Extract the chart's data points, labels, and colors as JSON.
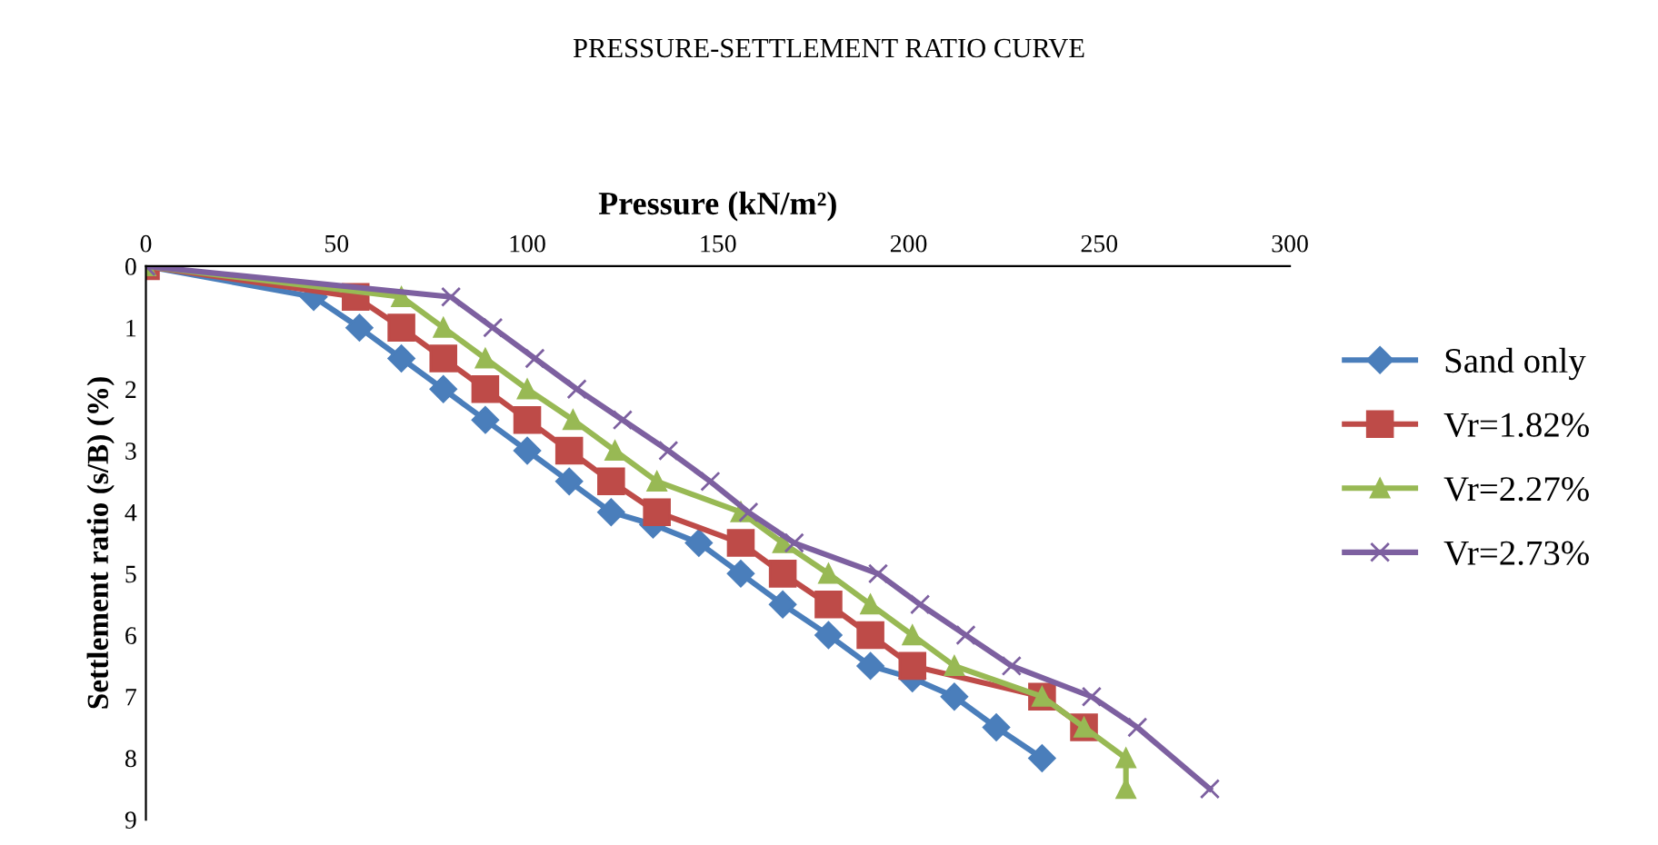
{
  "chart_data": {
    "type": "line",
    "title": "PRESSURE-SETTLEMENT RATIO CURVE",
    "xlabel": "Pressure (kN/m²)",
    "ylabel": "Settlement ratio (s/B) (%)",
    "xlim": [
      0,
      300
    ],
    "xticks": [
      0,
      50,
      100,
      150,
      200,
      250,
      300
    ],
    "ylim": [
      9,
      0
    ],
    "yticks": [
      0,
      1,
      2,
      3,
      4,
      5,
      6,
      7,
      8,
      9
    ],
    "grid": false,
    "legend": "right",
    "series": [
      {
        "name": "Sand only",
        "color": "#4a7ebb",
        "marker": "diamond",
        "x": [
          0,
          44,
          56,
          67,
          78,
          89,
          100,
          111,
          122,
          133,
          145,
          156,
          167,
          179,
          190,
          201,
          212,
          223,
          235
        ],
        "values": [
          0,
          0.5,
          1,
          1.5,
          2,
          2.5,
          3,
          3.5,
          4,
          4.2,
          4.5,
          5,
          5.5,
          6,
          6.5,
          6.7,
          7,
          7.5,
          8
        ]
      },
      {
        "name": "Vr=1.82%",
        "color": "#be4b48",
        "marker": "square",
        "x": [
          0,
          55,
          67,
          78,
          89,
          100,
          111,
          122,
          134,
          156,
          167,
          179,
          190,
          201,
          235,
          246
        ],
        "values": [
          0,
          0.5,
          1,
          1.5,
          2,
          2.5,
          3,
          3.5,
          4,
          4.5,
          5,
          5.5,
          6,
          6.5,
          7,
          7.5
        ]
      },
      {
        "name": "Vr=2.27%",
        "color": "#98b954",
        "marker": "triangle",
        "x": [
          0,
          67,
          78,
          89,
          100,
          112,
          123,
          134,
          156,
          167,
          179,
          190,
          201,
          212,
          235,
          246,
          257,
          257
        ],
        "values": [
          0,
          0.5,
          1,
          1.5,
          2,
          2.5,
          3,
          3.5,
          4,
          4.5,
          5,
          5.5,
          6,
          6.5,
          7,
          7.5,
          8,
          8.5
        ]
      },
      {
        "name": "Vr=2.73%",
        "color": "#7d60a0",
        "marker": "cross",
        "x": [
          0,
          80,
          91,
          102,
          113,
          125,
          137,
          148,
          158,
          170,
          192,
          203,
          215,
          227,
          248,
          260,
          279
        ],
        "values": [
          0,
          0.5,
          1,
          1.5,
          2,
          2.5,
          3,
          3.5,
          4,
          4.5,
          5,
          5.5,
          6,
          6.5,
          7,
          7.5,
          8.5
        ]
      }
    ]
  }
}
